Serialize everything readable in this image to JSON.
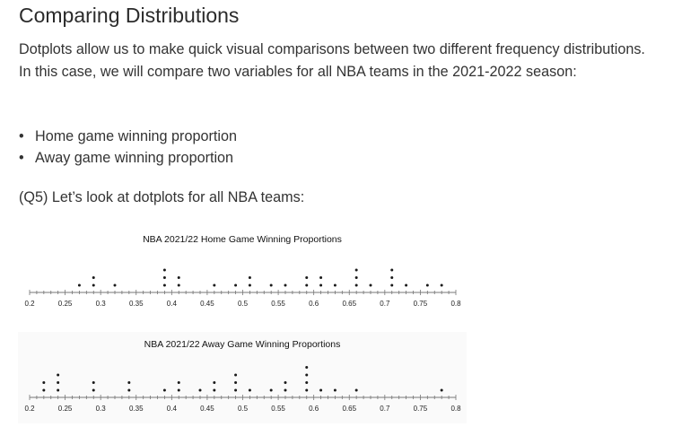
{
  "article": {
    "heading": "Comparing Distributions",
    "paragraph": "Dotplots allow us to make quick visual comparisons between two different frequency distributions. In this case, we will compare two variables for all NBA teams in the 2021-2022 season:",
    "bullets": [
      "Home game winning proportion",
      "Away game winning proportion"
    ],
    "question": "(Q5) Let’s look at dotplots for all NBA teams:"
  },
  "chart_data": [
    {
      "type": "scatter",
      "title": "NBA 2021/22 Home Game Winning Proportions",
      "xlim": [
        0.2,
        0.8
      ],
      "tick_labels": [
        "0.2",
        "0.25",
        "0.3",
        "0.35",
        "0.4",
        "0.45",
        "0.5",
        "0.55",
        "0.6",
        "0.65",
        "0.7",
        "0.75",
        "0.8"
      ],
      "points": [
        {
          "x": 0.27,
          "count": 1
        },
        {
          "x": 0.29,
          "count": 2
        },
        {
          "x": 0.32,
          "count": 1
        },
        {
          "x": 0.39,
          "count": 3
        },
        {
          "x": 0.41,
          "count": 2
        },
        {
          "x": 0.46,
          "count": 1
        },
        {
          "x": 0.49,
          "count": 1
        },
        {
          "x": 0.51,
          "count": 2
        },
        {
          "x": 0.54,
          "count": 1
        },
        {
          "x": 0.56,
          "count": 1
        },
        {
          "x": 0.59,
          "count": 2
        },
        {
          "x": 0.61,
          "count": 2
        },
        {
          "x": 0.63,
          "count": 1
        },
        {
          "x": 0.66,
          "count": 3
        },
        {
          "x": 0.68,
          "count": 1
        },
        {
          "x": 0.71,
          "count": 3
        },
        {
          "x": 0.73,
          "count": 1
        },
        {
          "x": 0.76,
          "count": 1
        },
        {
          "x": 0.78,
          "count": 1
        }
      ]
    },
    {
      "type": "scatter",
      "title": "NBA 2021/22 Away Game Winning Proportions",
      "xlim": [
        0.2,
        0.8
      ],
      "tick_labels": [
        "0.2",
        "0.25",
        "0.3",
        "0.35",
        "0.4",
        "0.45",
        "0.5",
        "0.55",
        "0.6",
        "0.65",
        "0.7",
        "0.75",
        "0.8"
      ],
      "points": [
        {
          "x": 0.22,
          "count": 2
        },
        {
          "x": 0.24,
          "count": 3
        },
        {
          "x": 0.29,
          "count": 2
        },
        {
          "x": 0.34,
          "count": 2
        },
        {
          "x": 0.39,
          "count": 1
        },
        {
          "x": 0.41,
          "count": 2
        },
        {
          "x": 0.44,
          "count": 1
        },
        {
          "x": 0.46,
          "count": 2
        },
        {
          "x": 0.49,
          "count": 3
        },
        {
          "x": 0.51,
          "count": 1
        },
        {
          "x": 0.54,
          "count": 1
        },
        {
          "x": 0.56,
          "count": 2
        },
        {
          "x": 0.59,
          "count": 4
        },
        {
          "x": 0.61,
          "count": 1
        },
        {
          "x": 0.63,
          "count": 1
        },
        {
          "x": 0.66,
          "count": 1
        },
        {
          "x": 0.78,
          "count": 1
        }
      ]
    }
  ]
}
